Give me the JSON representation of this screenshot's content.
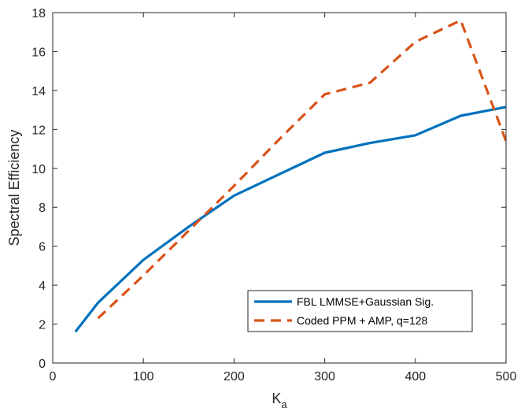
{
  "chart_data": {
    "type": "line",
    "xlabel": "K",
    "xlabel_sub": "a",
    "ylabel": "Spectral Efficiency",
    "xlim": [
      0,
      500
    ],
    "ylim": [
      0,
      18
    ],
    "xticks": [
      0,
      100,
      200,
      300,
      400,
      500
    ],
    "yticks": [
      0,
      2,
      4,
      6,
      8,
      10,
      12,
      14,
      16,
      18
    ],
    "grid": false,
    "legend_position": "bottom-right",
    "series": [
      {
        "name": "FBL LMMSE+Gaussian Sig.",
        "color": "#0072BD",
        "style": "solid",
        "x": [
          25,
          50,
          100,
          150,
          200,
          250,
          300,
          350,
          400,
          450,
          500
        ],
        "y": [
          1.6,
          3.1,
          5.3,
          7.0,
          8.6,
          9.7,
          10.8,
          11.3,
          11.7,
          12.7,
          13.15
        ]
      },
      {
        "name": "Coded PPM + AMP, q=128",
        "color": "#D95319",
        "style": "dashed",
        "x": [
          50,
          100,
          150,
          200,
          250,
          300,
          350,
          400,
          450,
          500
        ],
        "y": [
          2.3,
          4.5,
          6.8,
          9.1,
          11.5,
          13.8,
          14.4,
          16.5,
          17.6,
          11.4
        ]
      }
    ]
  }
}
